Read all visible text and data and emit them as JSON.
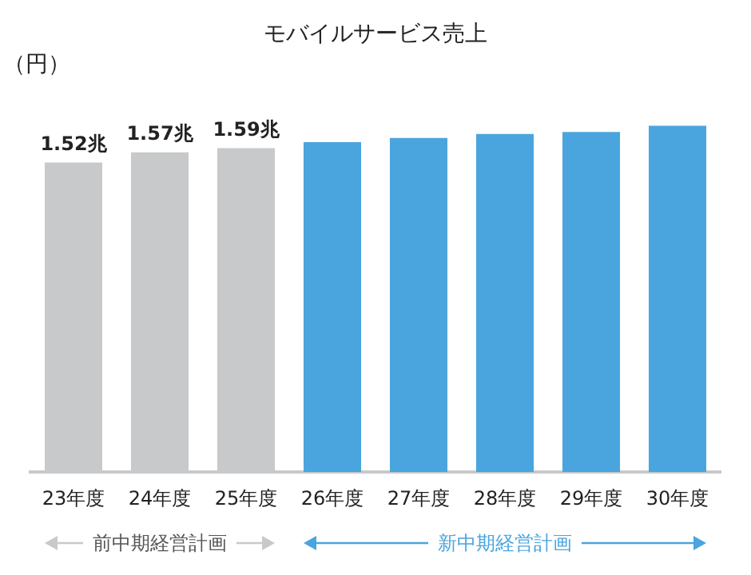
{
  "chart_data": {
    "type": "bar",
    "title": "モバイルサービス売上",
    "ylabel": "（円）",
    "categories": [
      "23年度",
      "24年度",
      "25年度",
      "26年度",
      "27年度",
      "28年度",
      "29年度",
      "30年度"
    ],
    "values": [
      1.52,
      1.57,
      1.59,
      1.62,
      1.64,
      1.66,
      1.67,
      1.7
    ],
    "colors": [
      "#c8c9cb",
      "#c8c9cb",
      "#c8c9cb",
      "#4aa5de",
      "#4aa5de",
      "#4aa5de",
      "#4aa5de",
      "#4aa5de"
    ],
    "value_labels": [
      "1.52兆",
      "1.57兆",
      "1.59兆",
      null,
      null,
      null,
      null,
      null
    ],
    "annotations": [
      "前中期経営計画",
      "新中期経営計画"
    ],
    "grid": false,
    "legend": false
  }
}
